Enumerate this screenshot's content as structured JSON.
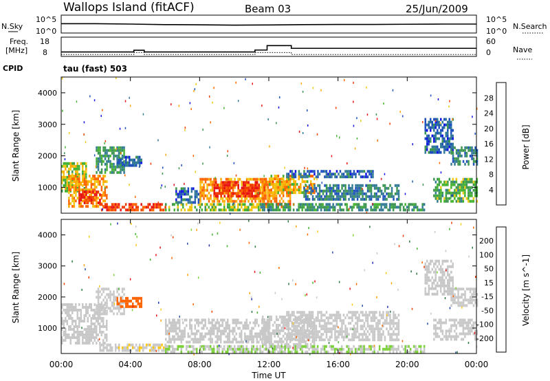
{
  "header": {
    "station": "Wallops Island (fitACF)",
    "beam": "Beam 03",
    "date": "25/Jun/2009"
  },
  "status": {
    "left_top_label": "N.Sky",
    "left_top_ticks": [
      "10^5",
      "10^0"
    ],
    "right_top_label": "N.Search",
    "right_top_ticks": [
      "10^5",
      "10^0"
    ],
    "freq_label_1": "Freq.",
    "freq_label_2": "[MHz]",
    "freq_ticks": [
      "18",
      "8"
    ],
    "nave_label": "Nave",
    "nave_ticks": [
      "60",
      "0"
    ],
    "cpid_label": "CPID",
    "cpid_value": "tau (fast) 503"
  },
  "colors": {
    "power_scale": [
      "#1414e6",
      "#1e50be",
      "#327a96",
      "#3c9650",
      "#46b432",
      "#f0c814",
      "#ffaa00",
      "#ff6400",
      "#f03c00",
      "#e61414"
    ],
    "velocity_scale": [
      "#1e32b4",
      "#2850a0",
      "#2d7846",
      "#46b432",
      "#7dd23c",
      "#c8c8c8",
      "#c8c8c8",
      "#ffc814",
      "#ffa000",
      "#ff6400",
      "#f03c00",
      "#e61414"
    ]
  },
  "chart_data": [
    {
      "type": "line",
      "panel": "N.Sky / N.Search",
      "x": [
        0,
        2,
        4,
        6,
        8,
        10,
        12,
        14,
        16,
        18,
        20,
        22,
        24
      ],
      "series": [
        {
          "name": "N.Sky",
          "values": [
            2.6,
            2.6,
            2.5,
            2.35,
            2.3,
            2.2,
            2.25,
            2.35,
            2.4,
            2.4,
            2.45,
            2.5,
            2.5
          ]
        }
      ],
      "ylim": [
        0,
        5
      ]
    },
    {
      "type": "line",
      "panel": "Freq. / Nave",
      "x": [
        0,
        4.2,
        4.8,
        11.2,
        11.9,
        12.9,
        13.3,
        24
      ],
      "series": [
        {
          "name": "Freq.",
          "values": [
            10.3,
            11.2,
            10.3,
            11.3,
            13.6,
            13.6,
            12.2,
            12.2
          ]
        },
        {
          "name": "Nave",
          "values": [
            9,
            10,
            9,
            10,
            10,
            10,
            9,
            9
          ]
        }
      ],
      "ylim": [
        8,
        18
      ]
    },
    {
      "type": "heatmap",
      "panel": "Power",
      "xlabel": "",
      "ylabel": "Slant Range [km]",
      "xticks": [
        "00:00",
        "04:00",
        "08:00",
        "12:00",
        "16:00",
        "20:00",
        "00:00"
      ],
      "yticks": [
        "1000",
        "2000",
        "3000",
        "4000"
      ],
      "xlim": [
        0,
        24
      ],
      "ylim": [
        180,
        4500
      ],
      "colorbar": {
        "label": "Power [dB]",
        "ticks": [
          "28",
          "24",
          "20",
          "16",
          "12",
          "8",
          "4"
        ],
        "range": [
          0,
          30
        ]
      },
      "regions": [
        {
          "t": [
            0.0,
            1.4
          ],
          "r": [
            900,
            1800
          ],
          "v": 15
        },
        {
          "t": [
            0.4,
            2.6
          ],
          "r": [
            400,
            1400
          ],
          "v": 20
        },
        {
          "t": [
            1.0,
            2.2
          ],
          "r": [
            500,
            900
          ],
          "v": 27
        },
        {
          "t": [
            2.0,
            3.6
          ],
          "r": [
            1500,
            2300
          ],
          "v": 10
        },
        {
          "t": [
            3.2,
            4.6
          ],
          "r": [
            1700,
            2000
          ],
          "v": 6
        },
        {
          "t": [
            2.2,
            6.0
          ],
          "r": [
            250,
            500
          ],
          "v": 25
        },
        {
          "t": [
            6.0,
            11.5
          ],
          "r": [
            250,
            500
          ],
          "v": 14
        },
        {
          "t": [
            6.6,
            8.0
          ],
          "r": [
            550,
            1000
          ],
          "v": 6
        },
        {
          "t": [
            8.0,
            11.8
          ],
          "r": [
            600,
            1300
          ],
          "v": 20
        },
        {
          "t": [
            8.8,
            11.4
          ],
          "r": [
            700,
            1200
          ],
          "v": 27
        },
        {
          "t": [
            11.6,
            13.2
          ],
          "r": [
            400,
            1300
          ],
          "v": 22
        },
        {
          "t": [
            12.0,
            14.6
          ],
          "r": [
            800,
            1400
          ],
          "v": 18
        },
        {
          "t": [
            11.5,
            21.0
          ],
          "r": [
            250,
            500
          ],
          "v": 10
        },
        {
          "t": [
            13.0,
            18.0
          ],
          "r": [
            1300,
            1550
          ],
          "v": 6
        },
        {
          "t": [
            14.0,
            19.5
          ],
          "r": [
            600,
            1100
          ],
          "v": 8
        },
        {
          "t": [
            21.0,
            22.6
          ],
          "r": [
            2100,
            3200
          ],
          "v": 6
        },
        {
          "t": [
            21.5,
            24.0
          ],
          "r": [
            600,
            1300
          ],
          "v": 12
        },
        {
          "t": [
            22.5,
            24.0
          ],
          "r": [
            1700,
            2300
          ],
          "v": 8
        }
      ]
    },
    {
      "type": "heatmap",
      "panel": "Velocity",
      "xlabel": "Time UT",
      "ylabel": "Slant Range [km]",
      "xticks": [
        "00:00",
        "04:00",
        "08:00",
        "12:00",
        "16:00",
        "20:00",
        "00:00"
      ],
      "yticks": [
        "1000",
        "2000",
        "3000",
        "4000"
      ],
      "xlim": [
        0,
        24
      ],
      "ylim": [
        180,
        4500
      ],
      "colorbar": {
        "label": "Velocity [m s^-1]",
        "ticks": [
          "200",
          "100",
          "50",
          "15",
          "-15",
          "-50",
          "-100",
          "-200"
        ],
        "range": [
          -250,
          250
        ]
      },
      "regions": [
        {
          "t": [
            0.0,
            2.6
          ],
          "r": [
            500,
            1800
          ],
          "v": 0
        },
        {
          "t": [
            2.0,
            3.6
          ],
          "r": [
            1500,
            2300
          ],
          "v": 0
        },
        {
          "t": [
            3.2,
            4.6
          ],
          "r": [
            1700,
            2000
          ],
          "v": 150
        },
        {
          "t": [
            2.2,
            6.0
          ],
          "r": [
            250,
            500
          ],
          "v": 30
        },
        {
          "t": [
            6.0,
            11.5
          ],
          "r": [
            250,
            450
          ],
          "v": -40
        },
        {
          "t": [
            6.0,
            12.0
          ],
          "r": [
            550,
            1300
          ],
          "v": 0
        },
        {
          "t": [
            11.6,
            14.6
          ],
          "r": [
            400,
            1400
          ],
          "v": 0
        },
        {
          "t": [
            11.5,
            21.0
          ],
          "r": [
            200,
            450
          ],
          "v": -40
        },
        {
          "t": [
            13.0,
            19.5
          ],
          "r": [
            600,
            1550
          ],
          "v": 0
        },
        {
          "t": [
            21.0,
            22.6
          ],
          "r": [
            2100,
            3200
          ],
          "v": 0
        },
        {
          "t": [
            21.5,
            24.0
          ],
          "r": [
            600,
            1300
          ],
          "v": 0
        },
        {
          "t": [
            22.5,
            24.0
          ],
          "r": [
            1700,
            2300
          ],
          "v": 0
        }
      ]
    }
  ]
}
